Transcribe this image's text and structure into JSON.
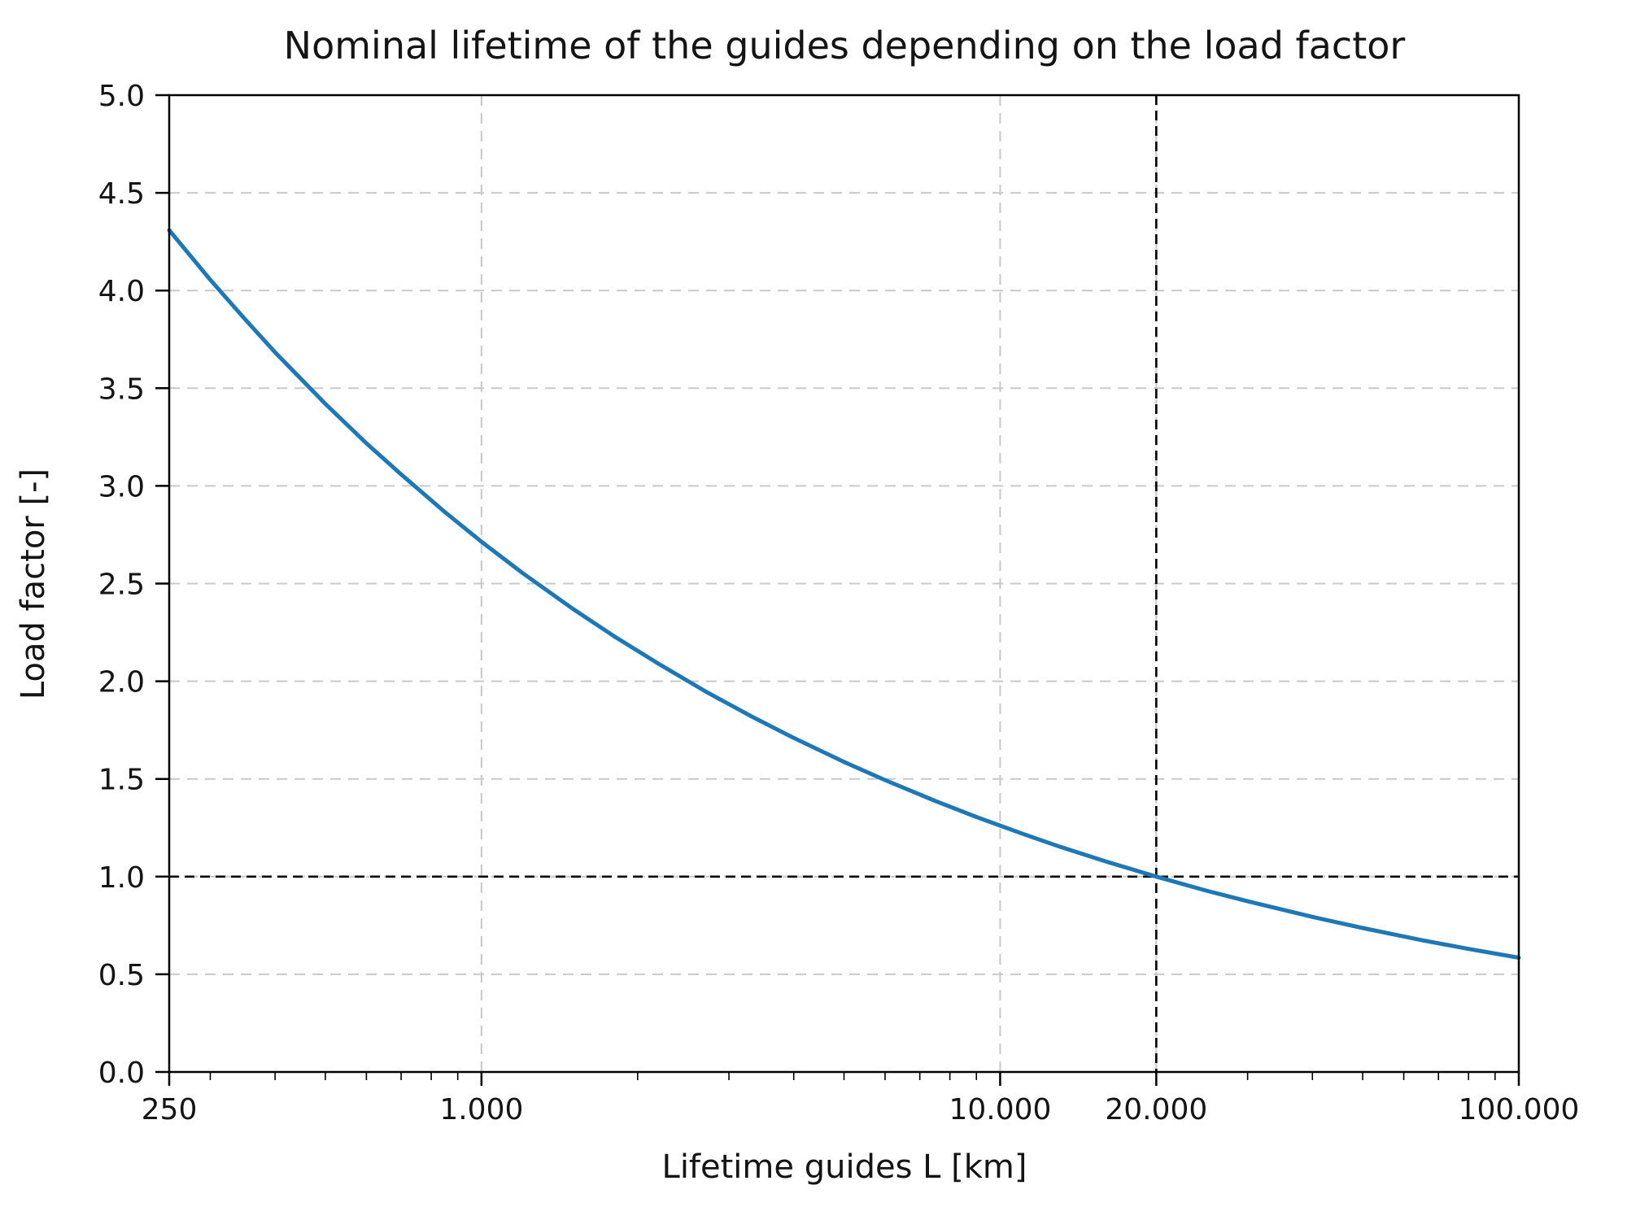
{
  "chart_data": {
    "type": "line",
    "title": "Nominal lifetime of the guides depending on the load factor",
    "xlabel": "Lifetime guides L [km]",
    "ylabel": "Load factor [-]",
    "x_scale": "log",
    "xlim": [
      250,
      100000
    ],
    "ylim": [
      0.0,
      5.0
    ],
    "x_ticks": [
      {
        "value": 250,
        "label": "250"
      },
      {
        "value": 1000,
        "label": "1.000"
      },
      {
        "value": 10000,
        "label": "10.000"
      },
      {
        "value": 20000,
        "label": "20.000"
      },
      {
        "value": 100000,
        "label": "100.000"
      }
    ],
    "x_minor_ticks": [
      300,
      400,
      500,
      600,
      700,
      800,
      900,
      2000,
      3000,
      4000,
      5000,
      6000,
      7000,
      8000,
      9000,
      30000,
      40000,
      50000,
      60000,
      70000,
      80000,
      90000
    ],
    "y_ticks": [
      {
        "value": 0.0,
        "label": "0.0"
      },
      {
        "value": 0.5,
        "label": "0.5"
      },
      {
        "value": 1.0,
        "label": "1.0"
      },
      {
        "value": 1.5,
        "label": "1.5"
      },
      {
        "value": 2.0,
        "label": "2.0"
      },
      {
        "value": 2.5,
        "label": "2.5"
      },
      {
        "value": 3.0,
        "label": "3.0"
      },
      {
        "value": 3.5,
        "label": "3.5"
      },
      {
        "value": 4.0,
        "label": "4.0"
      },
      {
        "value": 4.5,
        "label": "4.5"
      },
      {
        "value": 5.0,
        "label": "5.0"
      }
    ],
    "grid": {
      "visible": true,
      "style": "dashed",
      "color": "#c9c9c9"
    },
    "legend": null,
    "series": [
      {
        "name": "nominal-lifetime-curve",
        "color": "#1f77b4",
        "points": [
          [
            250,
            4.309
          ],
          [
            300,
            4.055
          ],
          [
            350,
            3.853
          ],
          [
            400,
            3.684
          ],
          [
            500,
            3.42
          ],
          [
            600,
            3.218
          ],
          [
            700,
            3.059
          ],
          [
            850,
            2.866
          ],
          [
            1000,
            2.714
          ],
          [
            1200,
            2.554
          ],
          [
            1500,
            2.371
          ],
          [
            1800,
            2.231
          ],
          [
            2200,
            2.088
          ],
          [
            2700,
            1.949
          ],
          [
            3300,
            1.823
          ],
          [
            4000,
            1.71
          ],
          [
            5000,
            1.587
          ],
          [
            6000,
            1.494
          ],
          [
            7500,
            1.387
          ],
          [
            9000,
            1.305
          ],
          [
            11000,
            1.221
          ],
          [
            13000,
            1.154
          ],
          [
            16000,
            1.077
          ],
          [
            20000,
            1.0
          ],
          [
            25000,
            0.928
          ],
          [
            30000,
            0.874
          ],
          [
            40000,
            0.794
          ],
          [
            50000,
            0.737
          ],
          [
            65000,
            0.675
          ],
          [
            80000,
            0.63
          ],
          [
            100000,
            0.585
          ]
        ]
      }
    ],
    "reference_lines": {
      "horizontal_y": 1.0,
      "vertical_x": 20000,
      "style": "dashed",
      "color": "#000000"
    }
  }
}
